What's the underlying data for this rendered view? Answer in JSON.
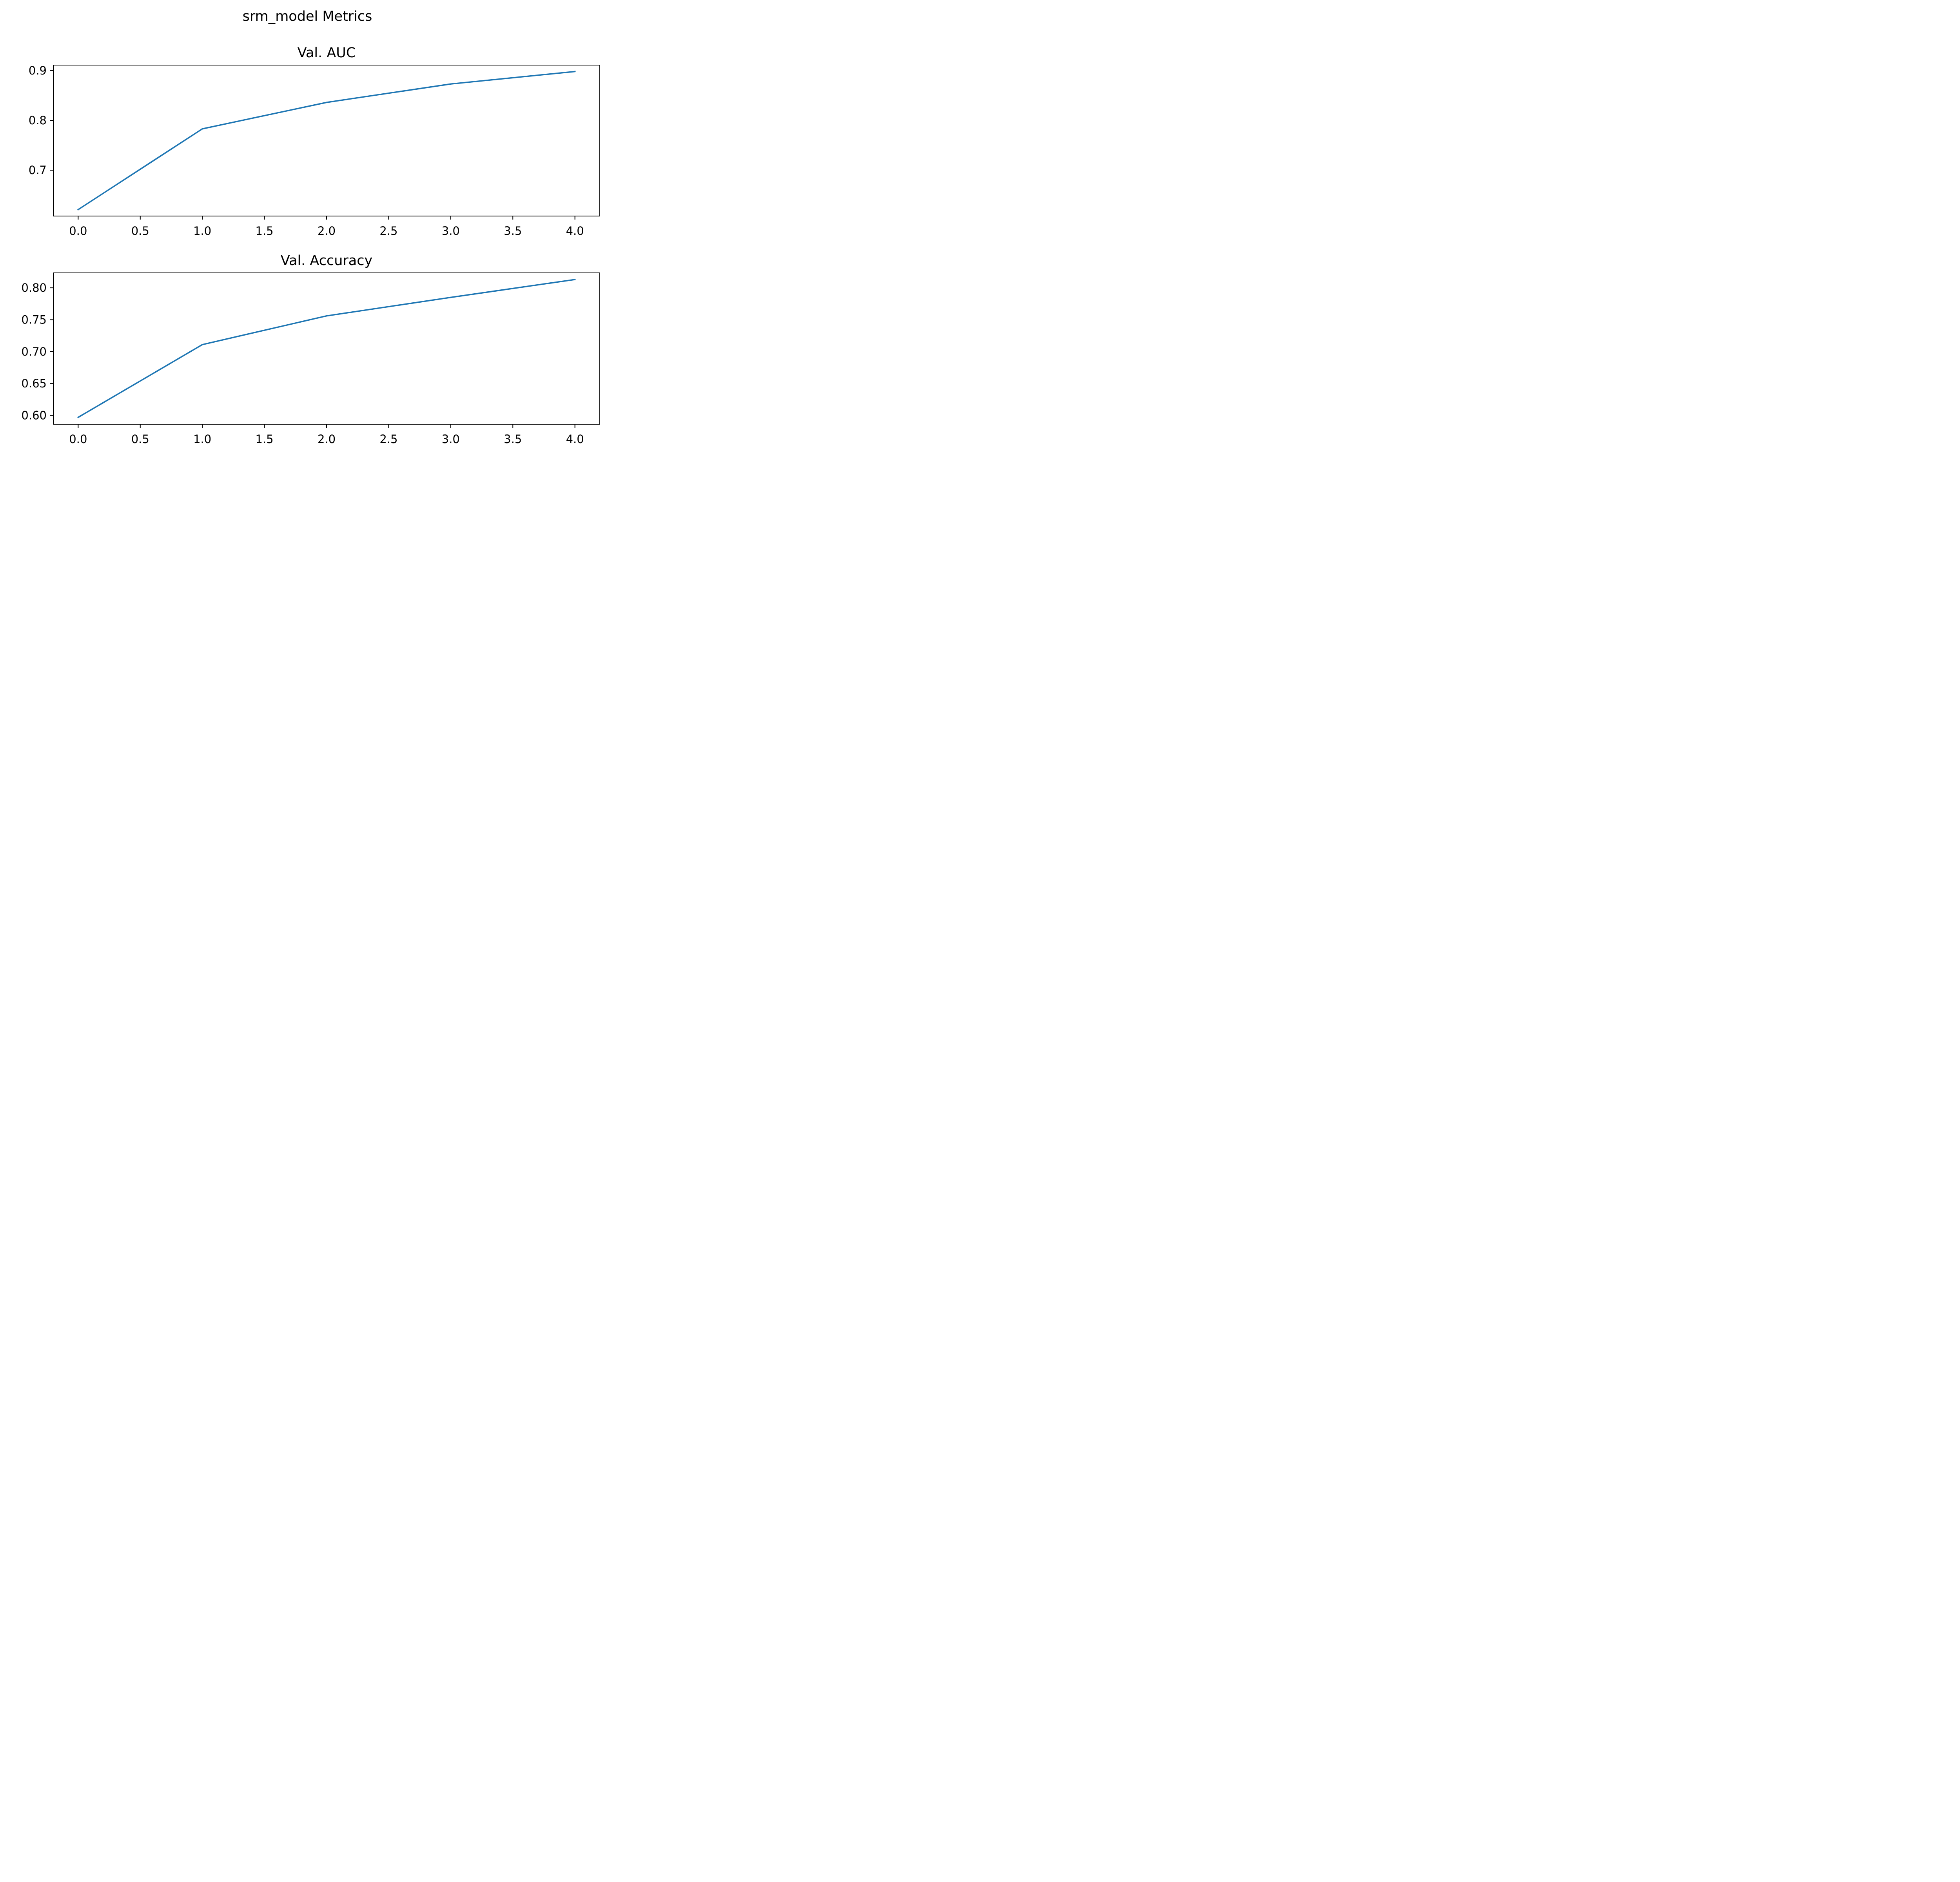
{
  "figure": {
    "suptitle": "srm_model Metrics"
  },
  "chart_data": [
    {
      "type": "line",
      "title": "Val. AUC",
      "xlabel": "",
      "ylabel": "",
      "x": [
        0,
        1,
        2,
        3,
        4
      ],
      "series": [
        {
          "values": [
            0.621,
            0.783,
            0.836,
            0.873,
            0.898
          ],
          "color": "#1f77b4"
        }
      ],
      "xlim": [
        -0.2,
        4.2
      ],
      "ylim": [
        0.6081,
        0.9109
      ],
      "xticks": [
        0.0,
        0.5,
        1.0,
        1.5,
        2.0,
        2.5,
        3.0,
        3.5,
        4.0
      ],
      "xtick_labels": [
        "0.0",
        "0.5",
        "1.0",
        "1.5",
        "2.0",
        "2.5",
        "3.0",
        "3.5",
        "4.0"
      ],
      "yticks": [
        0.7,
        0.8,
        0.9
      ],
      "ytick_labels": [
        "0.7",
        "0.8",
        "0.9"
      ],
      "grid": false,
      "legend": "none"
    },
    {
      "type": "line",
      "title": "Val. Accuracy",
      "xlabel": "",
      "ylabel": "",
      "x": [
        0,
        1,
        2,
        3,
        4
      ],
      "series": [
        {
          "values": [
            0.597,
            0.711,
            0.756,
            0.785,
            0.813
          ],
          "color": "#1f77b4"
        }
      ],
      "xlim": [
        -0.2,
        4.2
      ],
      "ylim": [
        0.5862,
        0.8234
      ],
      "xticks": [
        0.0,
        0.5,
        1.0,
        1.5,
        2.0,
        2.5,
        3.0,
        3.5,
        4.0
      ],
      "xtick_labels": [
        "0.0",
        "0.5",
        "1.0",
        "1.5",
        "2.0",
        "2.5",
        "3.0",
        "3.5",
        "4.0"
      ],
      "yticks": [
        0.6,
        0.65,
        0.7,
        0.75,
        0.8
      ],
      "ytick_labels": [
        "0.60",
        "0.65",
        "0.70",
        "0.75",
        "0.80"
      ],
      "grid": false,
      "legend": "none"
    }
  ]
}
